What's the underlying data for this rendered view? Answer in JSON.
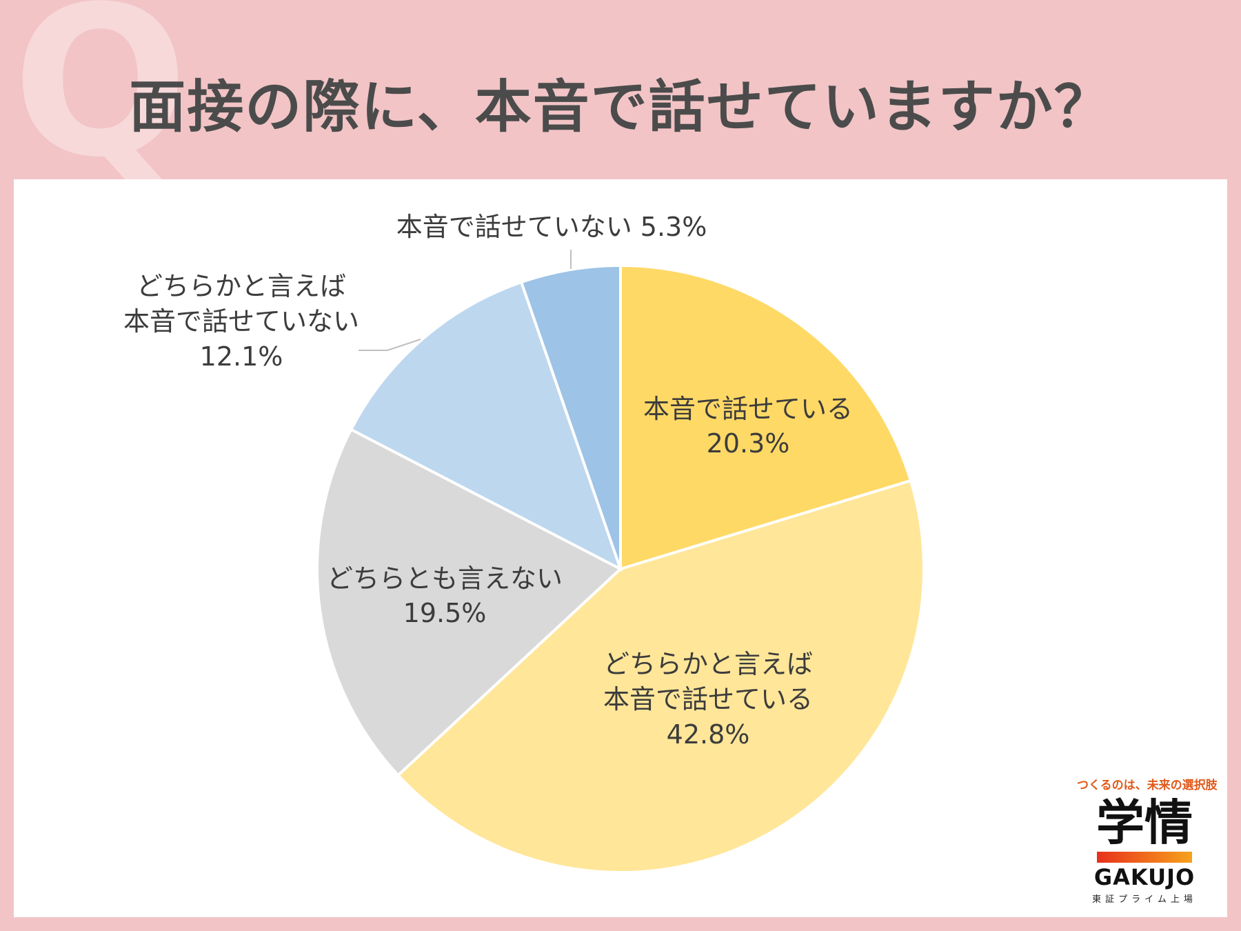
{
  "title": "面接の際に、本音で話せていますか？",
  "q_mark": "Q",
  "chart_data": {
    "type": "pie",
    "title": "面接の際に、本音で話せていますか？",
    "start": "12 o'clock, clockwise",
    "slices": [
      {
        "label": "本音で話せている",
        "value": 20.3,
        "display": "20.3%",
        "color": "#ffd966"
      },
      {
        "label": "どちらかと言えば本音で話せている",
        "value": 42.8,
        "display": "42.8%",
        "color": "#ffe699"
      },
      {
        "label": "どちらとも言えない",
        "value": 19.5,
        "display": "19.5%",
        "color": "#d9d9d9"
      },
      {
        "label": "どちらかと言えば本音で話せていない",
        "value": 12.1,
        "display": "12.1%",
        "color": "#bdd7ee"
      },
      {
        "label": "本音で話せていない",
        "value": 5.3,
        "display": "5.3%",
        "color": "#9dc3e6"
      }
    ],
    "labels": {
      "s0": [
        "本音で話せている",
        "20.3%"
      ],
      "s1": [
        "どちらかと言えば",
        "本音で話せている",
        "42.8%"
      ],
      "s2": [
        "どちらとも言えない",
        "19.5%"
      ],
      "s3": [
        "どちらかと言えば",
        "本音で話せていない",
        "12.1%"
      ],
      "s4": [
        "本音で話せていない 5.3%"
      ]
    }
  },
  "logo": {
    "tagline": "つくるのは、未来の選択肢",
    "name_kanji": "学情",
    "name_en": "GAKUJO",
    "sub": "東証プライム上場"
  }
}
